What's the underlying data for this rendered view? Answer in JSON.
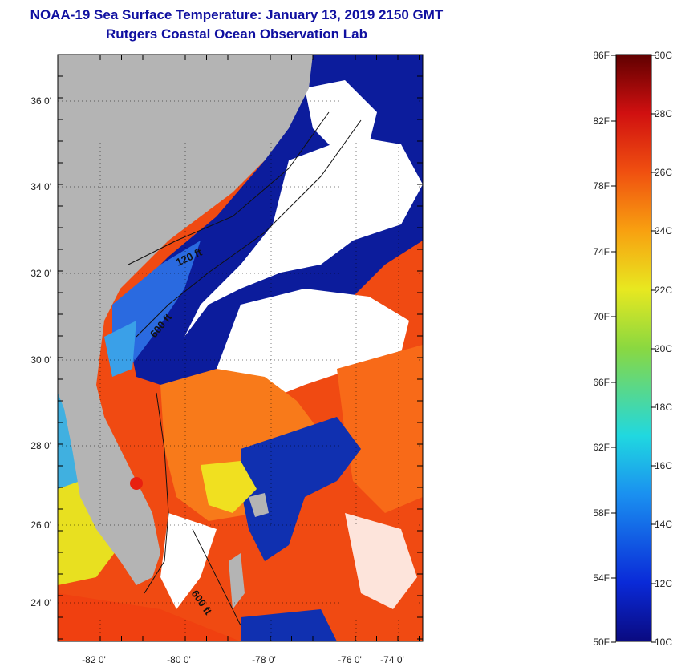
{
  "title": {
    "line1": "NOAA-19 Sea Surface Temperature:  January 13, 2019 2150 GMT",
    "line2": "Rutgers Coastal Ocean Observation Lab"
  },
  "map": {
    "lon_labels": [
      "-82 0'",
      "-80 0'",
      "-78 0'",
      "-76 0'",
      "-74 0'"
    ],
    "lat_labels": [
      "36 0'",
      "34 0'",
      "32 0'",
      "30 0'",
      "28 0'",
      "26 0'",
      "24 0'"
    ],
    "contour_labels": [
      "120 ft",
      "600 ft",
      "600 ft"
    ],
    "colors": {
      "land": "#b4b4b4",
      "cloud": "#ffffff",
      "cold": "#0a1a9a",
      "warm": "#f04010",
      "orange": "#f8801a"
    }
  },
  "colorbar": {
    "fahrenheit_labels": [
      "86F",
      "82F",
      "78F",
      "74F",
      "70F",
      "66F",
      "62F",
      "58F",
      "54F",
      "50F"
    ],
    "celsius_labels": [
      "30C",
      "28C",
      "26C",
      "24C",
      "22C",
      "20C",
      "18C",
      "16C",
      "14C",
      "12C",
      "10C"
    ],
    "range_c": [
      10,
      30
    ]
  }
}
